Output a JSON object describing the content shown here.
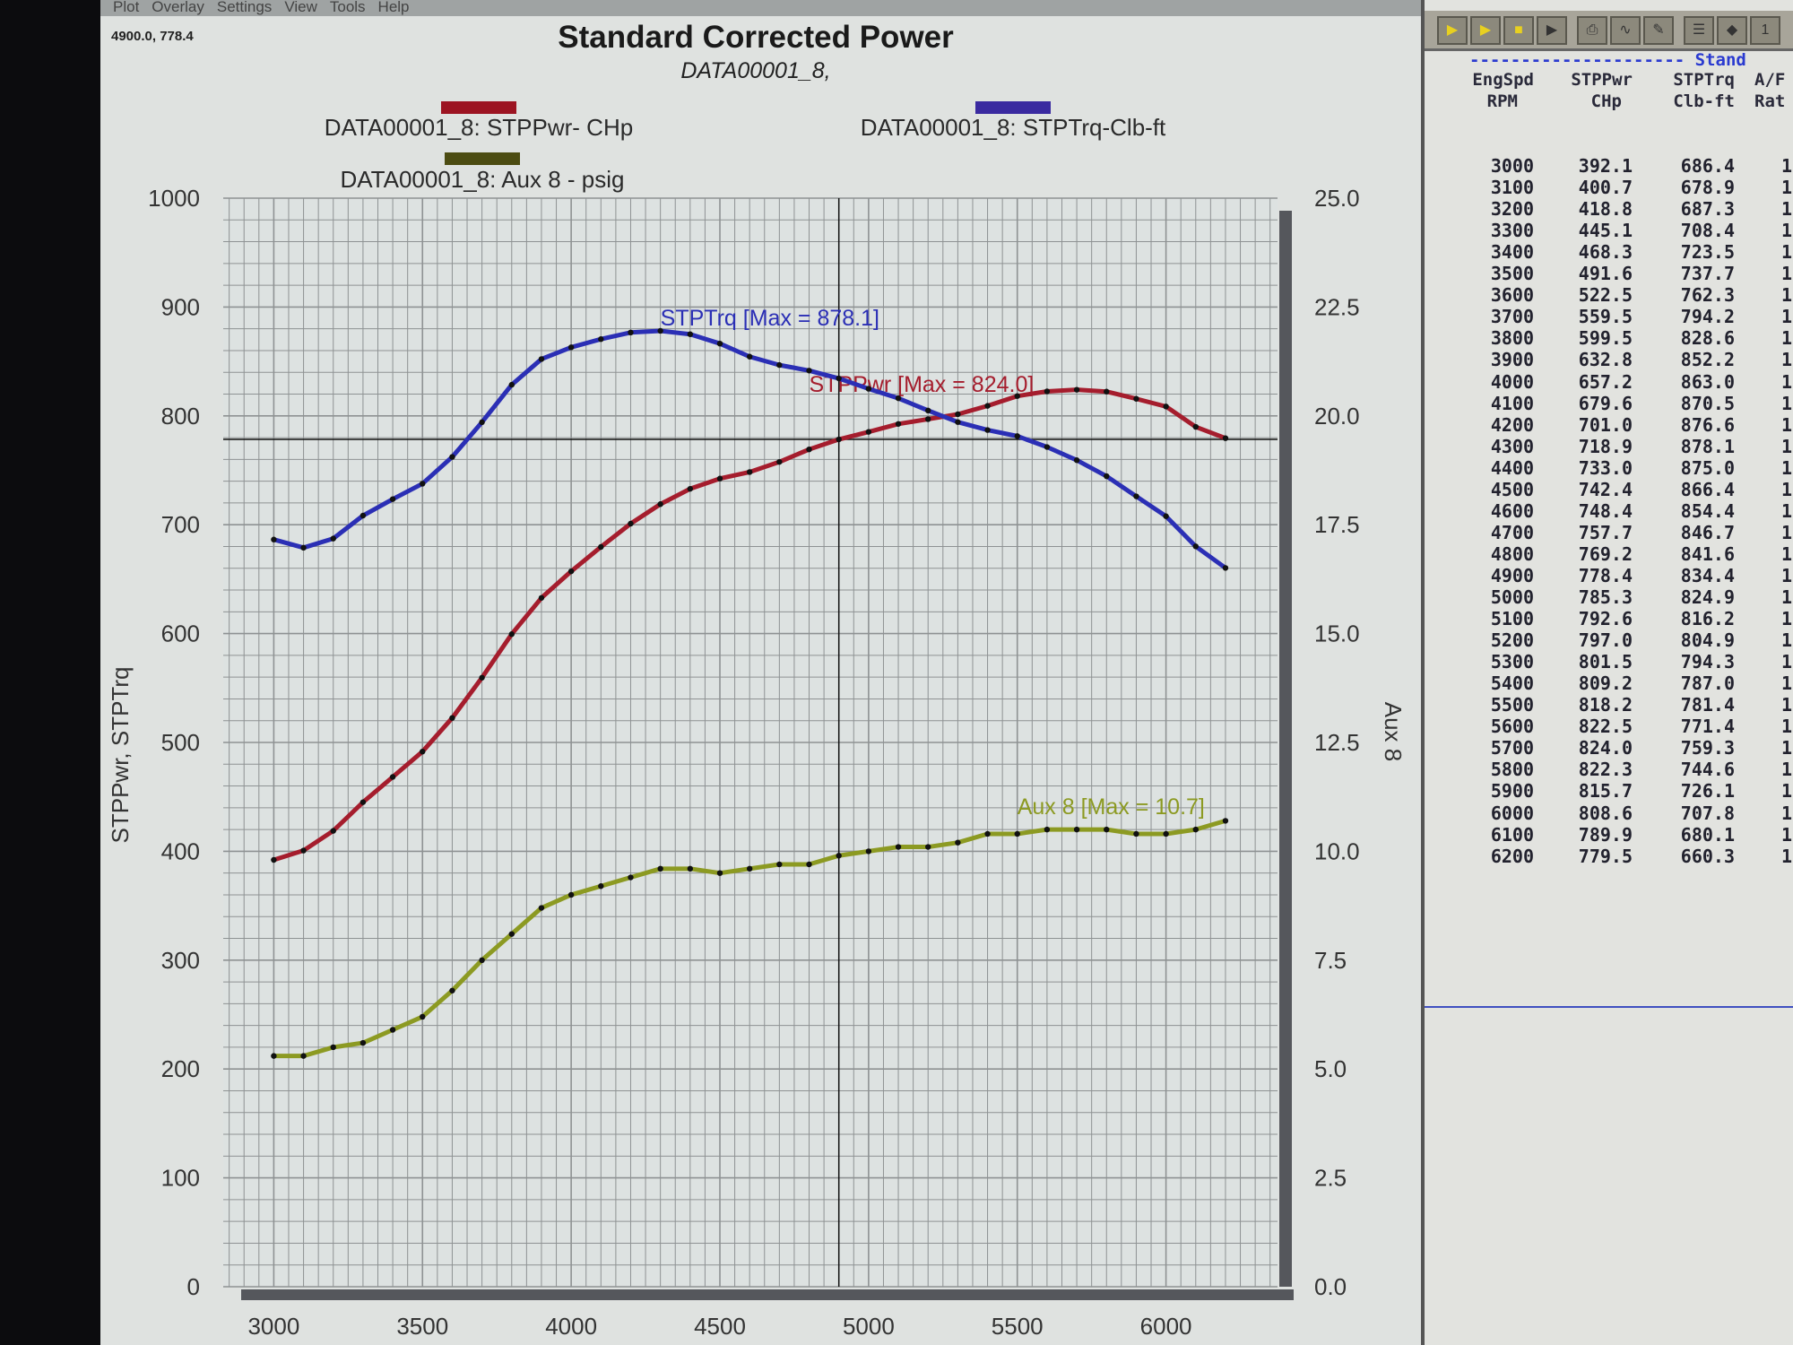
{
  "menu": [
    "Plot",
    "Overlay",
    "Settings",
    "View",
    "Tools",
    "Help"
  ],
  "cursor_readout": "4900.0, 778.4",
  "toolbar_icons": [
    "open-run-icon",
    "open-folder-icon",
    "save-icon",
    "play-icon",
    "print-icon",
    "graph-icon",
    "edit-graph-icon",
    "list-icon",
    "note-icon",
    "page-one-icon"
  ],
  "toolbar_page_label": "1",
  "table": {
    "section_label": "--------------------- Stand",
    "headers": [
      [
        "EngSpd",
        "RPM"
      ],
      [
        "STPPwr",
        "CHp"
      ],
      [
        "STPTrq",
        "Clb-ft"
      ],
      [
        "A/F",
        "Rat"
      ]
    ],
    "rows": [
      [
        "3000",
        "392.1",
        "686.4",
        "1"
      ],
      [
        "3100",
        "400.7",
        "678.9",
        "1"
      ],
      [
        "3200",
        "418.8",
        "687.3",
        "1"
      ],
      [
        "3300",
        "445.1",
        "708.4",
        "1"
      ],
      [
        "3400",
        "468.3",
        "723.5",
        "1"
      ],
      [
        "3500",
        "491.6",
        "737.7",
        "1"
      ],
      [
        "3600",
        "522.5",
        "762.3",
        "1"
      ],
      [
        "3700",
        "559.5",
        "794.2",
        "1"
      ],
      [
        "3800",
        "599.5",
        "828.6",
        "1"
      ],
      [
        "3900",
        "632.8",
        "852.2",
        "1"
      ],
      [
        "4000",
        "657.2",
        "863.0",
        "1"
      ],
      [
        "4100",
        "679.6",
        "870.5",
        "1"
      ],
      [
        "4200",
        "701.0",
        "876.6",
        "1"
      ],
      [
        "4300",
        "718.9",
        "878.1",
        "1"
      ],
      [
        "4400",
        "733.0",
        "875.0",
        "1"
      ],
      [
        "4500",
        "742.4",
        "866.4",
        "1"
      ],
      [
        "4600",
        "748.4",
        "854.4",
        "1"
      ],
      [
        "4700",
        "757.7",
        "846.7",
        "1"
      ],
      [
        "4800",
        "769.2",
        "841.6",
        "1"
      ],
      [
        "4900",
        "778.4",
        "834.4",
        "1"
      ],
      [
        "5000",
        "785.3",
        "824.9",
        "1"
      ],
      [
        "5100",
        "792.6",
        "816.2",
        "1"
      ],
      [
        "5200",
        "797.0",
        "804.9",
        "1"
      ],
      [
        "5300",
        "801.5",
        "794.3",
        "1"
      ],
      [
        "5400",
        "809.2",
        "787.0",
        "1"
      ],
      [
        "5500",
        "818.2",
        "781.4",
        "1"
      ],
      [
        "5600",
        "822.5",
        "771.4",
        "1"
      ],
      [
        "5700",
        "824.0",
        "759.3",
        "1"
      ],
      [
        "5800",
        "822.3",
        "744.6",
        "1"
      ],
      [
        "5900",
        "815.7",
        "726.1",
        "1"
      ],
      [
        "6000",
        "808.6",
        "707.8",
        "1"
      ],
      [
        "6100",
        "789.9",
        "680.1",
        "1"
      ],
      [
        "6200",
        "779.5",
        "660.3",
        "1"
      ]
    ]
  },
  "chart_data": {
    "type": "line",
    "title": "Standard Corrected Power",
    "subtitle": "DATA00001_8,",
    "ylabel": "STPPwr, STPTrq",
    "y2label": "Aux 8",
    "xlim": [
      2830,
      6375
    ],
    "ylim": [
      0,
      1000
    ],
    "y2lim": [
      0,
      25
    ],
    "grid": true,
    "xticks": [
      3000,
      3500,
      4000,
      4500,
      5000,
      5500,
      6000
    ],
    "yticks": [
      "0",
      "100",
      "200",
      "300",
      "400",
      "500",
      "600",
      "700",
      "800",
      "900",
      "1000"
    ],
    "y2ticks": [
      "0.0",
      "2.5",
      "5.0",
      "7.5",
      "10.0",
      "12.5",
      "15.0",
      "17.5",
      "20.0",
      "22.5",
      "25.0"
    ],
    "crosshair": [
      4900,
      778.4
    ],
    "x": [
      3000,
      3100,
      3200,
      3300,
      3400,
      3500,
      3600,
      3700,
      3800,
      3900,
      4000,
      4100,
      4200,
      4300,
      4400,
      4500,
      4600,
      4700,
      4800,
      4900,
      5000,
      5100,
      5200,
      5300,
      5400,
      5500,
      5600,
      5700,
      5800,
      5900,
      6000,
      6100,
      6200
    ],
    "series": [
      {
        "name": "DATA00001_8: STPPwr- CHp",
        "axis": "left",
        "color": "#a51d2d",
        "swatch": "#9c1422",
        "annotation": "STPPwr [Max = 824.0]",
        "annotation_at": [
          4800,
          822
        ],
        "values": [
          392.1,
          400.7,
          418.8,
          445.1,
          468.3,
          491.6,
          522.5,
          559.5,
          599.5,
          632.8,
          657.2,
          679.6,
          701.0,
          718.9,
          733.0,
          742.4,
          748.4,
          757.7,
          769.2,
          778.4,
          785.3,
          792.6,
          797.0,
          801.5,
          809.2,
          818.2,
          822.5,
          824.0,
          822.3,
          815.7,
          808.6,
          789.9,
          779.5
        ]
      },
      {
        "name": "DATA00001_8: STPTrq-Clb-ft",
        "axis": "left",
        "color": "#2b2fb5",
        "swatch": "#3a2aa0",
        "annotation": "STPTrq [Max = 878.1]",
        "annotation_at": [
          4300,
          883
        ],
        "values": [
          686.4,
          678.9,
          687.3,
          708.4,
          723.5,
          737.7,
          762.3,
          794.2,
          828.6,
          852.2,
          863.0,
          870.5,
          876.6,
          878.1,
          875.0,
          866.4,
          854.4,
          846.7,
          841.6,
          834.4,
          824.9,
          816.2,
          804.9,
          794.3,
          787.0,
          781.4,
          771.4,
          759.3,
          744.6,
          726.1,
          707.8,
          680.1,
          660.3
        ]
      },
      {
        "name": "DATA00001_8: Aux 8 - psig",
        "axis": "right",
        "color": "#8c9a22",
        "swatch": "#4c4c12",
        "annotation": "Aux 8  [Max = 10.7]",
        "annotation_at": [
          5500,
          10.85
        ],
        "values": [
          5.3,
          5.3,
          5.5,
          5.6,
          5.9,
          6.2,
          6.8,
          7.5,
          8.1,
          8.7,
          9.0,
          9.2,
          9.4,
          9.6,
          9.6,
          9.5,
          9.6,
          9.7,
          9.7,
          9.9,
          10.0,
          10.1,
          10.1,
          10.2,
          10.4,
          10.4,
          10.5,
          10.5,
          10.5,
          10.4,
          10.4,
          10.5,
          10.7
        ]
      }
    ]
  }
}
